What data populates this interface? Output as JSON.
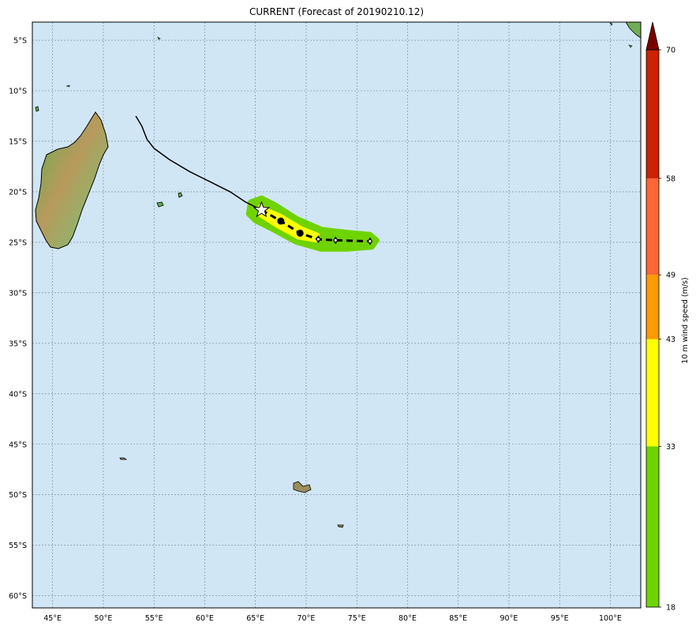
{
  "title": "CURRENT (Forecast of 20190210.12)",
  "map": {
    "lon_range": [
      43,
      103
    ],
    "lat_range": [
      -61.2,
      -3.2
    ],
    "ocean_color": "#d0e6f5",
    "grid_lon": [
      45,
      50,
      55,
      60,
      65,
      70,
      75,
      80,
      85,
      90,
      95,
      100
    ],
    "grid_lat": [
      -5,
      -10,
      -15,
      -20,
      -25,
      -30,
      -35,
      -40,
      -45,
      -50,
      -55,
      -60
    ],
    "lon_labels": [
      "45°E",
      "50°E",
      "55°E",
      "60°E",
      "65°E",
      "70°E",
      "75°E",
      "80°E",
      "85°E",
      "90°E",
      "95°E",
      "100°E"
    ],
    "lat_labels": [
      "5°S",
      "10°S",
      "15°S",
      "20°S",
      "25°S",
      "30°S",
      "35°S",
      "40°S",
      "45°S",
      "50°S",
      "55°S",
      "60°S"
    ]
  },
  "track": {
    "observed": [
      [
        53.2,
        -12.5
      ],
      [
        53.8,
        -13.5
      ],
      [
        54.3,
        -14.8
      ],
      [
        55.0,
        -15.7
      ],
      [
        56.5,
        -16.8
      ],
      [
        58.5,
        -18.0
      ],
      [
        60.5,
        -19.0
      ],
      [
        62.5,
        -20.0
      ],
      [
        64.0,
        -21.0
      ],
      [
        65.6,
        -21.8
      ]
    ],
    "current_position": [
      65.6,
      -21.8
    ],
    "forecast": [
      [
        65.6,
        -21.8
      ],
      [
        67.5,
        -22.9
      ],
      [
        69.4,
        -24.1
      ],
      [
        71.2,
        -24.7
      ],
      [
        72.9,
        -24.8
      ],
      [
        76.3,
        -24.9
      ]
    ],
    "filled_points": [
      [
        67.5,
        -22.9
      ],
      [
        69.4,
        -24.1
      ]
    ],
    "open_points": [
      [
        71.2,
        -24.7
      ],
      [
        72.9,
        -24.8
      ],
      [
        76.3,
        -24.9
      ]
    ],
    "swath_33_color": "#6fd300",
    "swath_43_color": "#ffff00",
    "swath_33_path": [
      [
        64.5,
        -21.0
      ],
      [
        65.6,
        -20.6
      ],
      [
        67.0,
        -21.3
      ],
      [
        69.0,
        -22.6
      ],
      [
        71.5,
        -23.7
      ],
      [
        74.0,
        -24.0
      ],
      [
        76.3,
        -24.2
      ],
      [
        77.0,
        -24.8
      ],
      [
        76.5,
        -25.5
      ],
      [
        74.0,
        -25.7
      ],
      [
        71.5,
        -25.7
      ],
      [
        69.0,
        -25.0
      ],
      [
        66.8,
        -23.8
      ],
      [
        65.0,
        -22.9
      ],
      [
        64.3,
        -22.2
      ]
    ],
    "swath_43_path": [
      [
        65.4,
        -21.4
      ],
      [
        67.5,
        -22.3
      ],
      [
        69.5,
        -23.5
      ],
      [
        71.2,
        -24.2
      ],
      [
        71.0,
        -24.9
      ],
      [
        69.2,
        -24.6
      ],
      [
        67.2,
        -23.5
      ],
      [
        65.3,
        -22.3
      ]
    ]
  },
  "colorbar": {
    "label": "10 m wind speed (m/s)",
    "ticks": [
      "18",
      "33",
      "43",
      "49",
      "58",
      "70"
    ],
    "bounds": [
      18,
      33,
      43,
      49,
      58,
      70
    ],
    "colors": [
      "#6fd300",
      "#ffff00",
      "#ff9900",
      "#ff6633",
      "#cc2200"
    ],
    "extend_color": "#7a0000"
  }
}
